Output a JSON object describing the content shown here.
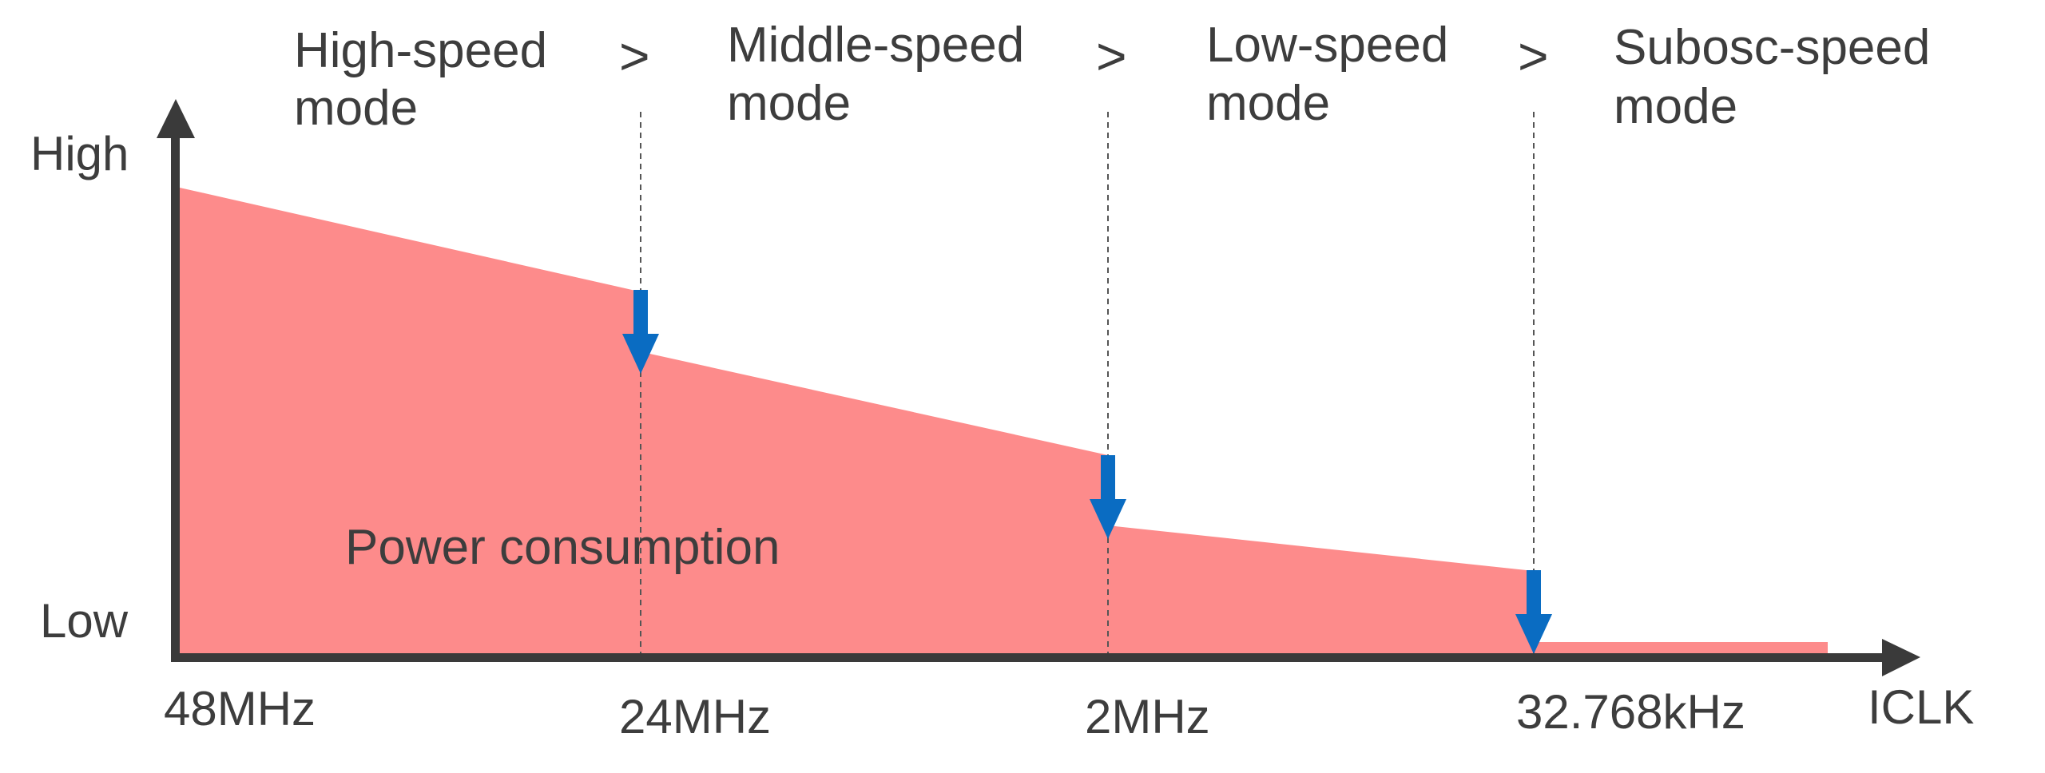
{
  "y_axis": {
    "high_label": "High",
    "low_label": "Low"
  },
  "x_axis": {
    "label": "ICLK",
    "ticks": [
      "48MHz",
      "24MHz",
      "2MHz",
      "32.768kHz"
    ]
  },
  "modes": [
    {
      "line1": "High-speed",
      "line2": "mode"
    },
    {
      "line1": "Middle-speed",
      "line2": "mode"
    },
    {
      "line1": "Low-speed",
      "line2": "mode"
    },
    {
      "line1": "Subosc-speed",
      "line2": "mode"
    }
  ],
  "comparison_symbol": ">",
  "area_label": "Power consumption",
  "colors": {
    "area": "#fd8b8b",
    "arrow": "#0a6cc2",
    "axis": "#3a3a3a",
    "text": "#3d3d3d",
    "divider": "#555555"
  },
  "icons": {
    "step_arrow": "arrow-down-icon",
    "y_axis_head": "arrow-up-icon",
    "x_axis_head": "arrow-right-icon"
  }
}
